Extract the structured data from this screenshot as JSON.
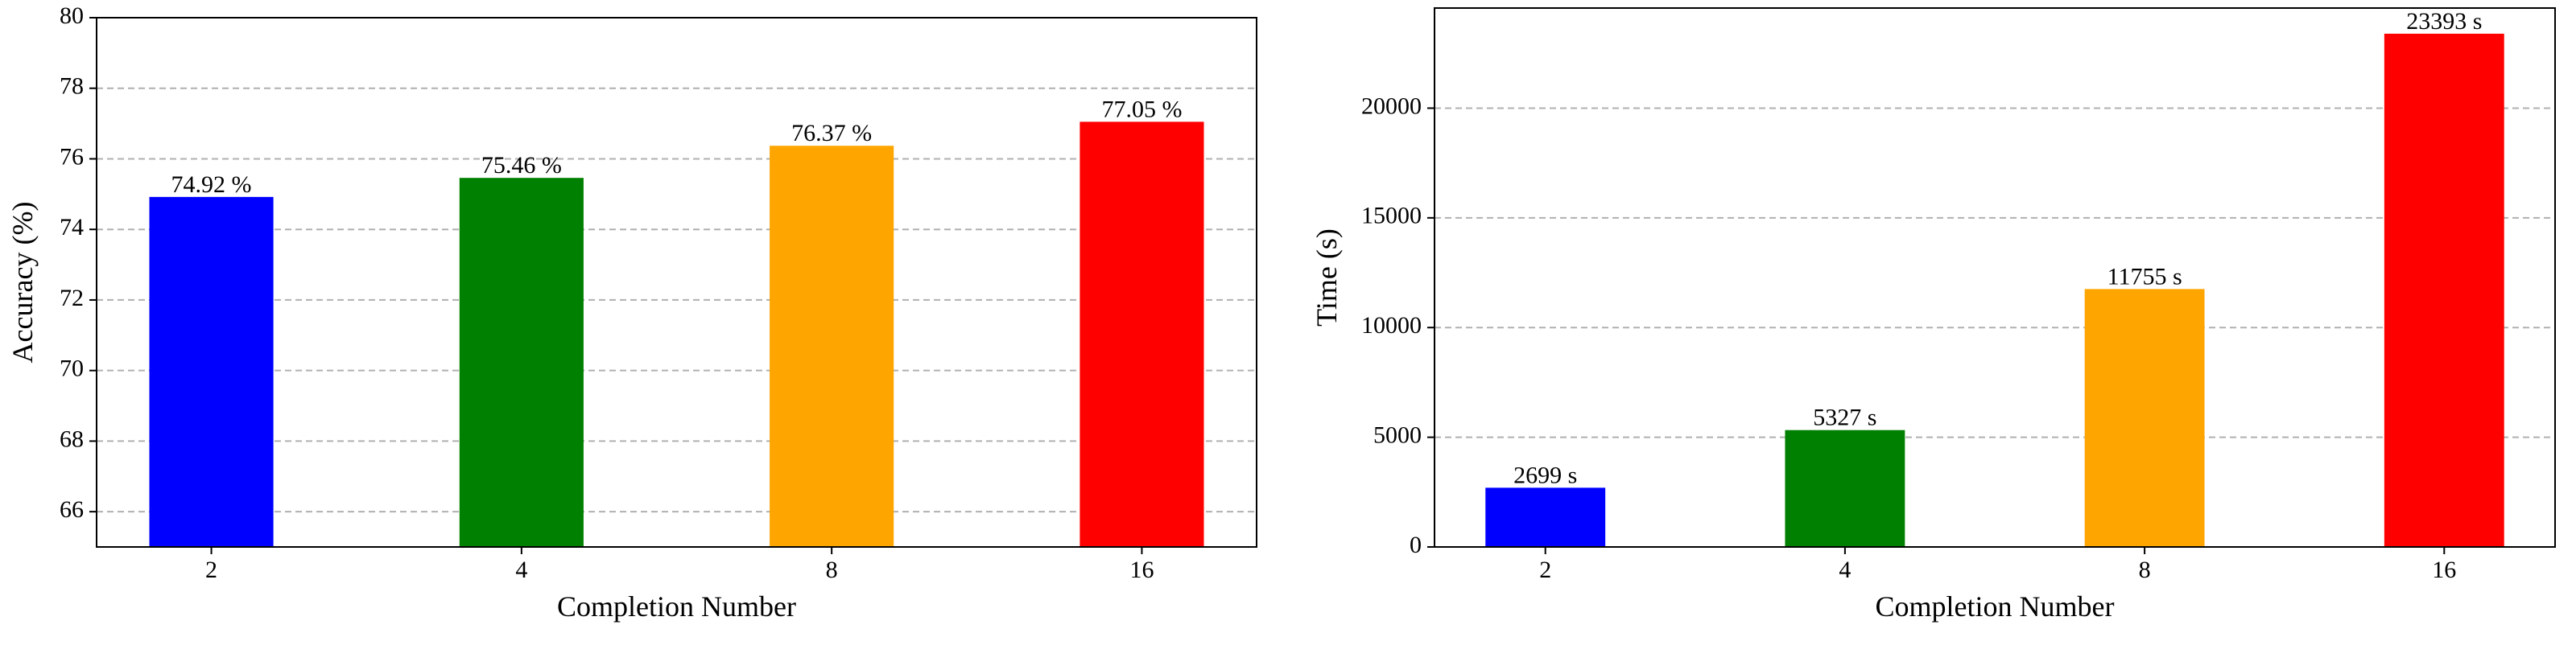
{
  "chart_data": [
    {
      "type": "bar",
      "xlabel": "Completion Number",
      "ylabel": "Accuracy (%)",
      "categories": [
        "2",
        "4",
        "8",
        "16"
      ],
      "values": [
        74.92,
        75.46,
        76.37,
        77.05
      ],
      "value_labels": [
        "74.92 %",
        "75.46 %",
        "76.37 %",
        "77.05 %"
      ],
      "colors": [
        "#0000ff",
        "#008000",
        "#ffa500",
        "#ff0000"
      ],
      "ylim": [
        65,
        80
      ],
      "yticks": [
        66,
        68,
        70,
        72,
        74,
        76,
        78,
        80
      ],
      "grid": true
    },
    {
      "type": "bar",
      "xlabel": "Completion Number",
      "ylabel": "Time (s)",
      "categories": [
        "2",
        "4",
        "8",
        "16"
      ],
      "values": [
        2699,
        5327,
        11755,
        23393
      ],
      "value_labels": [
        "2699 s",
        "5327 s",
        "11755 s",
        "23393 s"
      ],
      "colors": [
        "#0000ff",
        "#008000",
        "#ffa500",
        "#ff0000"
      ],
      "ylim": [
        0,
        24563
      ],
      "yticks": [
        0,
        5000,
        10000,
        15000,
        20000
      ],
      "grid": true
    }
  ]
}
